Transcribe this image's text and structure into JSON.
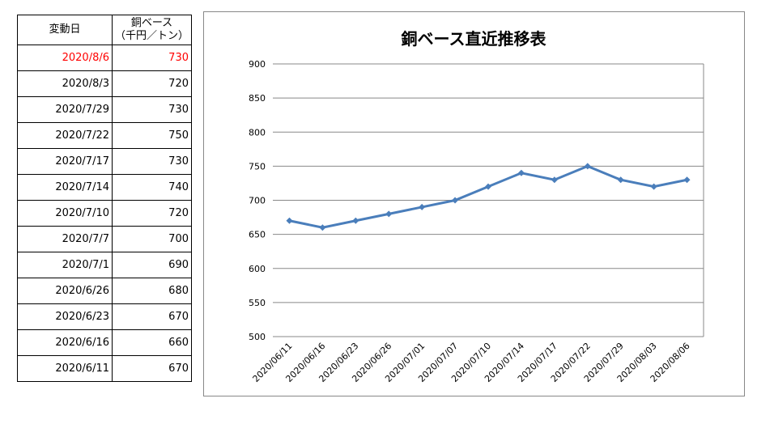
{
  "table": {
    "headers": {
      "date": "変動日",
      "value_line1": "銅ベース",
      "value_line2": "（千円／トン）"
    },
    "rows": [
      {
        "date": "2020/8/6",
        "value": "730",
        "highlight": true
      },
      {
        "date": "2020/8/3",
        "value": "720"
      },
      {
        "date": "2020/7/29",
        "value": "730"
      },
      {
        "date": "2020/7/22",
        "value": "750"
      },
      {
        "date": "2020/7/17",
        "value": "730"
      },
      {
        "date": "2020/7/14",
        "value": "740"
      },
      {
        "date": "2020/7/10",
        "value": "720"
      },
      {
        "date": "2020/7/7",
        "value": "700"
      },
      {
        "date": "2020/7/1",
        "value": "690"
      },
      {
        "date": "2020/6/26",
        "value": "680"
      },
      {
        "date": "2020/6/23",
        "value": "670"
      },
      {
        "date": "2020/6/16",
        "value": "660"
      },
      {
        "date": "2020/6/11",
        "value": "670"
      }
    ]
  },
  "chart_data": {
    "type": "line",
    "title": "銅ベース直近推移表",
    "categories": [
      "2020/06/11",
      "2020/06/16",
      "2020/06/23",
      "2020/06/26",
      "2020/07/01",
      "2020/07/07",
      "2020/07/10",
      "2020/07/14",
      "2020/07/17",
      "2020/07/22",
      "2020/07/29",
      "2020/08/03",
      "2020/08/06"
    ],
    "series": [
      {
        "name": "銅ベース",
        "values": [
          670,
          660,
          670,
          680,
          690,
          700,
          720,
          740,
          730,
          750,
          730,
          720,
          730
        ],
        "color": "#4a7ebb"
      }
    ],
    "ylim": [
      500,
      900
    ],
    "yticks": [
      "500",
      "550",
      "600",
      "650",
      "700",
      "750",
      "800",
      "850",
      "900"
    ],
    "grid": true,
    "legend": "none"
  },
  "colors": {
    "highlight": "#ff0000",
    "line": "#4a7ebb"
  }
}
